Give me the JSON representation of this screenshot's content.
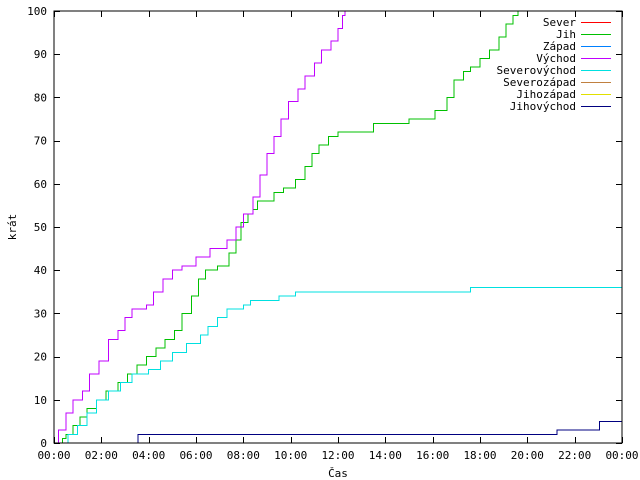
{
  "chart_data": {
    "type": "line",
    "title": "",
    "xlabel": "Čas",
    "ylabel": "krát",
    "xlim": [
      0,
      24
    ],
    "ylim": [
      0,
      100
    ],
    "grid": false,
    "legend_position": "top-right",
    "x_ticks": [
      {
        "value": 0,
        "label": "00:00"
      },
      {
        "value": 2,
        "label": "02:00"
      },
      {
        "value": 4,
        "label": "04:00"
      },
      {
        "value": 6,
        "label": "06:00"
      },
      {
        "value": 8,
        "label": "08:00"
      },
      {
        "value": 10,
        "label": "10:00"
      },
      {
        "value": 12,
        "label": "12:00"
      },
      {
        "value": 14,
        "label": "14:00"
      },
      {
        "value": 16,
        "label": "16:00"
      },
      {
        "value": 18,
        "label": "18:00"
      },
      {
        "value": 20,
        "label": "20:00"
      },
      {
        "value": 22,
        "label": "22:00"
      },
      {
        "value": 24,
        "label": "00:00"
      }
    ],
    "y_ticks": [
      {
        "value": 0,
        "label": "0"
      },
      {
        "value": 10,
        "label": "10"
      },
      {
        "value": 20,
        "label": "20"
      },
      {
        "value": 30,
        "label": "30"
      },
      {
        "value": 40,
        "label": "40"
      },
      {
        "value": 50,
        "label": "50"
      },
      {
        "value": 60,
        "label": "60"
      },
      {
        "value": 70,
        "label": "70"
      },
      {
        "value": 80,
        "label": "80"
      },
      {
        "value": 90,
        "label": "90"
      },
      {
        "value": 100,
        "label": "100"
      }
    ],
    "series": [
      {
        "name": "Sever",
        "color": "#ff0000",
        "points": []
      },
      {
        "name": "Jih",
        "color": "#00c000",
        "points": [
          [
            0,
            0
          ],
          [
            0.35,
            1
          ],
          [
            0.5,
            2
          ],
          [
            0.8,
            4
          ],
          [
            1.1,
            6
          ],
          [
            1.4,
            8
          ],
          [
            1.8,
            10
          ],
          [
            2.2,
            12
          ],
          [
            2.7,
            14
          ],
          [
            3.1,
            16
          ],
          [
            3.5,
            18
          ],
          [
            3.9,
            20
          ],
          [
            4.3,
            22
          ],
          [
            4.7,
            24
          ],
          [
            5.1,
            26
          ],
          [
            5.4,
            30
          ],
          [
            5.8,
            34
          ],
          [
            6.1,
            38
          ],
          [
            6.4,
            40
          ],
          [
            6.9,
            41
          ],
          [
            7.4,
            44
          ],
          [
            7.7,
            47
          ],
          [
            7.9,
            51
          ],
          [
            8.2,
            53
          ],
          [
            8.4,
            54
          ],
          [
            8.6,
            56
          ],
          [
            9.0,
            56
          ],
          [
            9.3,
            58
          ],
          [
            9.7,
            59
          ],
          [
            10.2,
            61
          ],
          [
            10.6,
            64
          ],
          [
            10.9,
            67
          ],
          [
            11.2,
            69
          ],
          [
            11.6,
            71
          ],
          [
            12.0,
            72
          ],
          [
            13.0,
            72
          ],
          [
            13.5,
            74
          ],
          [
            14.5,
            74
          ],
          [
            15.0,
            75
          ],
          [
            15.8,
            75
          ],
          [
            16.1,
            77
          ],
          [
            16.6,
            80
          ],
          [
            16.9,
            84
          ],
          [
            17.3,
            86
          ],
          [
            17.6,
            87
          ],
          [
            18.0,
            89
          ],
          [
            18.4,
            91
          ],
          [
            18.8,
            94
          ],
          [
            19.1,
            97
          ],
          [
            19.4,
            99
          ],
          [
            19.6,
            100
          ]
        ]
      },
      {
        "name": "Západ",
        "color": "#0080ff",
        "points": []
      },
      {
        "name": "Východ",
        "color": "#c000ff",
        "points": [
          [
            0,
            0
          ],
          [
            0.2,
            3
          ],
          [
            0.5,
            7
          ],
          [
            0.8,
            10
          ],
          [
            1.2,
            12
          ],
          [
            1.5,
            16
          ],
          [
            1.9,
            19
          ],
          [
            2.3,
            24
          ],
          [
            2.7,
            26
          ],
          [
            3.0,
            29
          ],
          [
            3.3,
            31
          ],
          [
            3.9,
            32
          ],
          [
            4.2,
            35
          ],
          [
            4.6,
            38
          ],
          [
            5.0,
            40
          ],
          [
            5.4,
            41
          ],
          [
            6.0,
            43
          ],
          [
            6.6,
            45
          ],
          [
            7.3,
            47
          ],
          [
            7.7,
            50
          ],
          [
            8.0,
            53
          ],
          [
            8.4,
            57
          ],
          [
            8.7,
            62
          ],
          [
            9.0,
            67
          ],
          [
            9.3,
            71
          ],
          [
            9.6,
            75
          ],
          [
            9.9,
            79
          ],
          [
            10.3,
            82
          ],
          [
            10.6,
            85
          ],
          [
            11.0,
            88
          ],
          [
            11.3,
            91
          ],
          [
            11.7,
            93
          ],
          [
            12.0,
            96
          ],
          [
            12.2,
            99
          ],
          [
            12.3,
            100
          ]
        ]
      },
      {
        "name": "Severovýchod",
        "color": "#00e0e0",
        "points": [
          [
            0,
            0
          ],
          [
            0.6,
            2
          ],
          [
            1.0,
            4
          ],
          [
            1.4,
            7
          ],
          [
            1.8,
            10
          ],
          [
            2.3,
            12
          ],
          [
            2.8,
            14
          ],
          [
            3.3,
            16
          ],
          [
            4.0,
            17
          ],
          [
            4.5,
            19
          ],
          [
            5.0,
            21
          ],
          [
            5.6,
            23
          ],
          [
            6.2,
            25
          ],
          [
            6.5,
            27
          ],
          [
            6.9,
            29
          ],
          [
            7.3,
            31
          ],
          [
            8.0,
            32
          ],
          [
            8.3,
            33
          ],
          [
            9.0,
            33
          ],
          [
            9.5,
            34
          ],
          [
            10.2,
            35
          ],
          [
            17.4,
            35
          ],
          [
            17.6,
            36
          ],
          [
            24,
            36
          ]
        ]
      },
      {
        "name": "Severozápad",
        "color": "#c08040",
        "points": []
      },
      {
        "name": "Jihozápad",
        "color": "#e0e000",
        "points": []
      },
      {
        "name": "Jihovýchod",
        "color": "#000080",
        "points": [
          [
            3.5,
            0
          ],
          [
            3.55,
            2
          ],
          [
            21.2,
            2
          ],
          [
            21.25,
            3
          ],
          [
            23.0,
            3
          ],
          [
            23.05,
            5
          ],
          [
            24,
            5
          ]
        ]
      }
    ]
  }
}
